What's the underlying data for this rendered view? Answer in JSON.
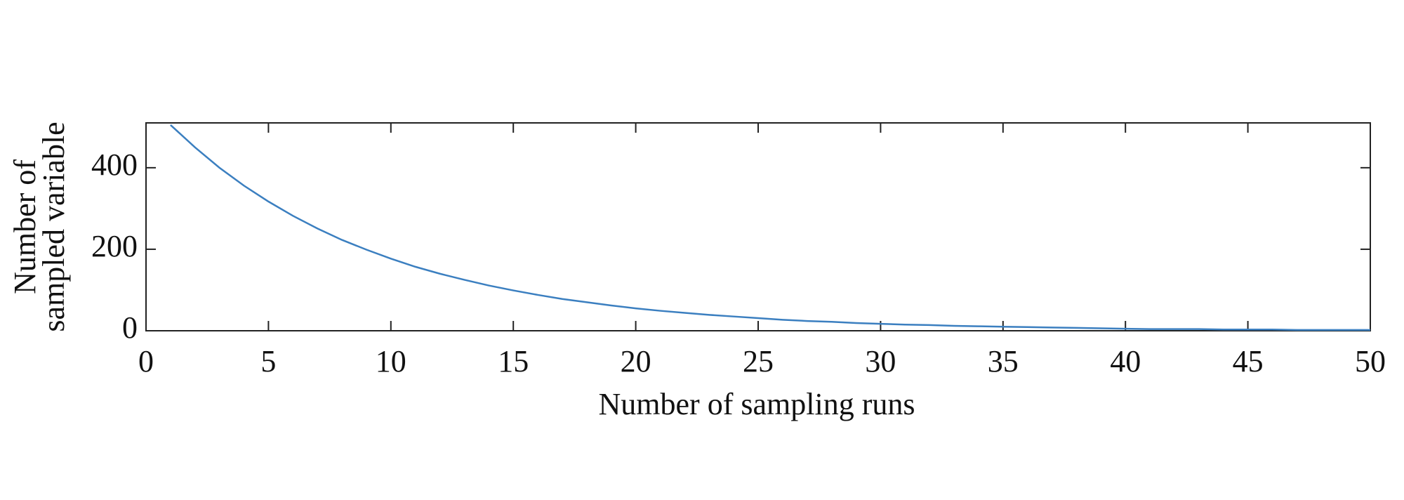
{
  "chart_data": {
    "type": "line",
    "xlabel": "Number of sampling runs",
    "ylabel": [
      "Number of",
      "sampled variable"
    ],
    "x": [
      1,
      2,
      3,
      4,
      5,
      6,
      7,
      8,
      9,
      10,
      11,
      12,
      13,
      14,
      15,
      16,
      17,
      18,
      19,
      20,
      21,
      22,
      23,
      24,
      25,
      26,
      27,
      28,
      29,
      30,
      31,
      32,
      33,
      34,
      35,
      36,
      37,
      38,
      39,
      40,
      41,
      42,
      43,
      44,
      45,
      46,
      47,
      48,
      49,
      50
    ],
    "series": [
      {
        "color": "#3b7fc0",
        "values": [
          505,
          450,
          400,
          356,
          317,
          282,
          251,
          223,
          199,
          177,
          157,
          140,
          125,
          111,
          99,
          88,
          78,
          70,
          62,
          55,
          49,
          44,
          39,
          35,
          31,
          27,
          24,
          22,
          19,
          17,
          15,
          14,
          12,
          11,
          10,
          9,
          8,
          7,
          6,
          5,
          4,
          4,
          4,
          3,
          3,
          3,
          2,
          2,
          2,
          2
        ]
      }
    ],
    "xlim": [
      0,
      50
    ],
    "xticks": [
      0,
      5,
      10,
      15,
      20,
      25,
      30,
      35,
      40,
      45,
      50
    ],
    "ylim": [
      0,
      510
    ],
    "yticks": [
      0,
      200,
      400
    ]
  }
}
